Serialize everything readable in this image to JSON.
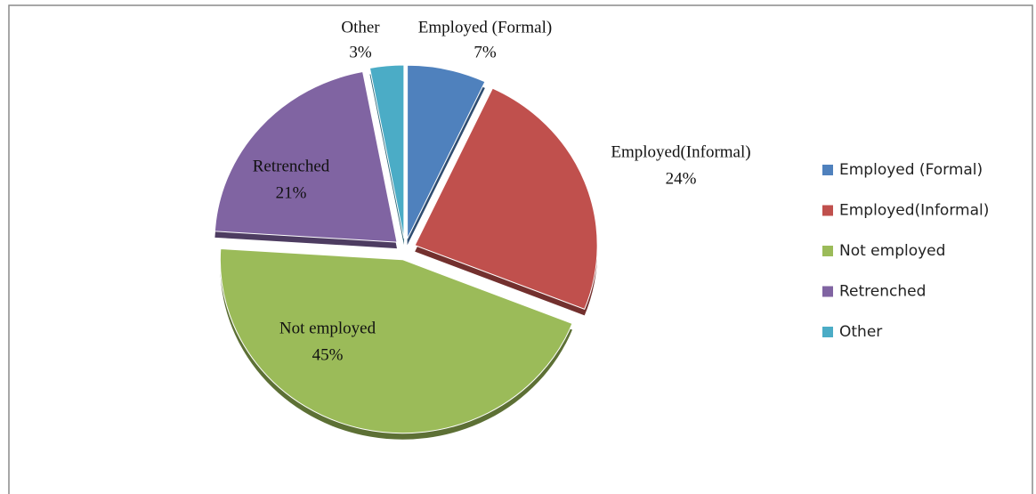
{
  "chart_data": {
    "type": "pie",
    "categories": [
      "Employed (Formal)",
      "Employed(Informal)",
      "Not employed",
      "Retrenched",
      "Other"
    ],
    "values": [
      7,
      24,
      45,
      21,
      3
    ],
    "value_labels": [
      "7%",
      "24%",
      "45%",
      "21%",
      "3%"
    ],
    "colors": [
      "#4f81bd",
      "#c0504d",
      "#9bbb59",
      "#8064a2",
      "#4bacc6"
    ],
    "legend": "right"
  }
}
